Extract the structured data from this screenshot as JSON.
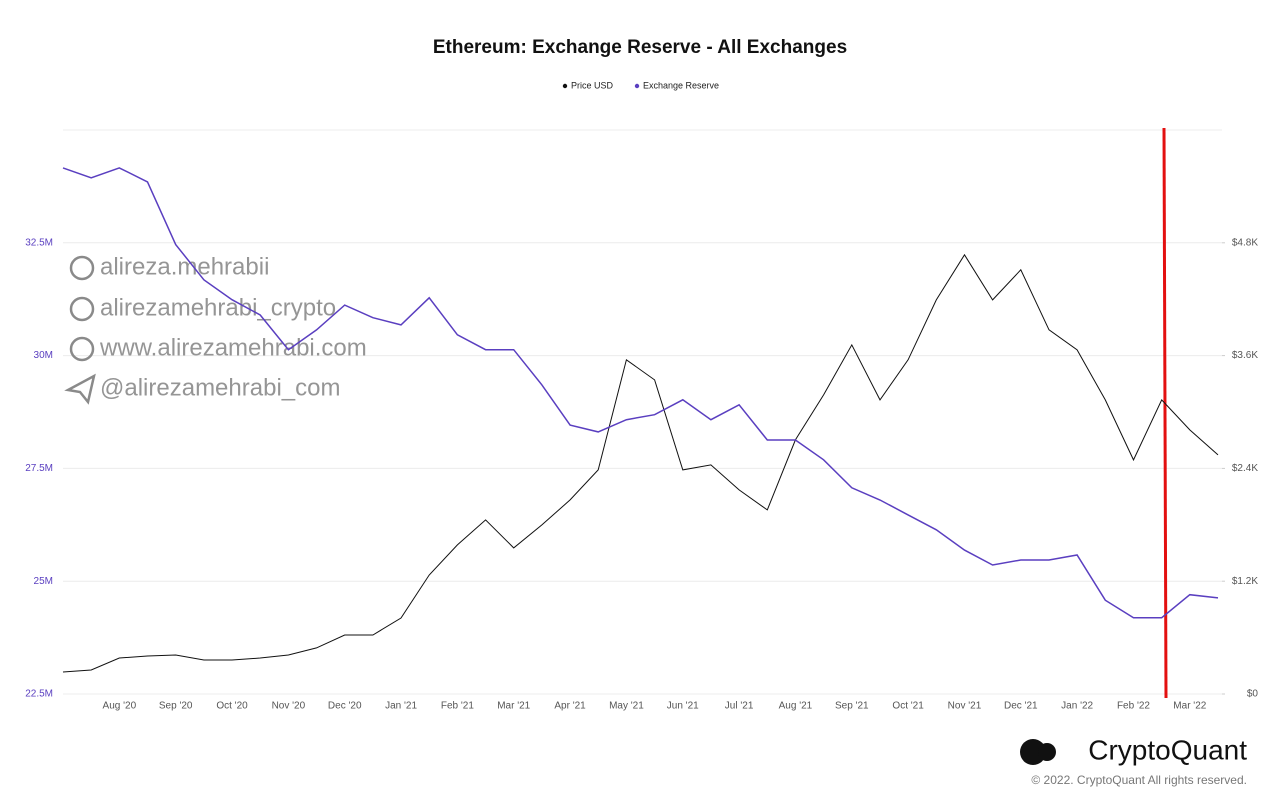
{
  "chart_data": {
    "type": "line",
    "title": "Ethereum: Exchange Reserve - All Exchanges",
    "categories": [
      null,
      null,
      "Aug '20",
      null,
      "Sep '20",
      null,
      "Oct '20",
      null,
      "Nov '20",
      null,
      "Dec '20",
      null,
      "Jan '21",
      null,
      "Feb '21",
      null,
      "Mar '21",
      null,
      "Apr '21",
      null,
      "May '21",
      null,
      "Jun '21",
      null,
      "Jul '21",
      null,
      "Aug '21",
      null,
      "Sep '21",
      null,
      "Oct '21",
      null,
      "Nov '21",
      null,
      "Dec '21",
      null,
      "Jan '22",
      null,
      "Feb '22",
      null,
      "Mar '22",
      null
    ],
    "series": [
      {
        "name": "Price USD",
        "color": "#111111",
        "axis": "y2",
        "values": [
          234,
          255,
          383,
          404,
          415,
          362,
          362,
          383,
          415,
          490,
          628,
          628,
          809,
          1266,
          1586,
          1852,
          1554,
          1799,
          2065,
          2384,
          3555,
          3342,
          2384,
          2437,
          2171,
          1958,
          2703,
          3182,
          3714,
          3129,
          3555,
          4193,
          4672,
          4193,
          4513,
          3874,
          3661,
          3129,
          2490,
          3129,
          2810,
          2544
        ]
      },
      {
        "name": "Exchange Reserve",
        "color": "#5a3fc0",
        "values": [
          34160000,
          33940000,
          34160000,
          33850000,
          32460000,
          31680000,
          31240000,
          30900000,
          30130000,
          30570000,
          31120000,
          30840000,
          30680000,
          31280000,
          30460000,
          30130000,
          30130000,
          29350000,
          28460000,
          28310000,
          28580000,
          28690000,
          29020000,
          28580000,
          28910000,
          28130000,
          28130000,
          27690000,
          27070000,
          26800000,
          26470000,
          26140000,
          25690000,
          25360000,
          25470000,
          25470000,
          25580000,
          24580000,
          24190000,
          24190000,
          24700000,
          24630000
        ]
      }
    ],
    "ylim": [
      22500000,
      35000000
    ],
    "yticks": [
      {
        "value": 22500000,
        "label": "22.5M"
      },
      {
        "value": 25000000,
        "label": "25M"
      },
      {
        "value": 27500000,
        "label": "27.5M"
      },
      {
        "value": 30000000,
        "label": "30M"
      },
      {
        "value": 32500000,
        "label": "32.5M"
      }
    ],
    "y2lim": [
      0,
      6000
    ],
    "y2ticks": [
      {
        "value": 0,
        "label": "$0"
      },
      {
        "value": 1200,
        "label": "$1.2K"
      },
      {
        "value": 2400,
        "label": "$2.4K"
      },
      {
        "value": 3600,
        "label": "$3.6K"
      },
      {
        "value": 4800,
        "label": "$4.8K"
      }
    ],
    "grid": true,
    "legend": "top"
  },
  "watermark": [
    "alireza.mehrabii",
    "alirezamehrabi_crypto",
    "www.alirezamehrabi.com",
    "@alirezamehrabi_com"
  ],
  "footer": {
    "logo": "CryptoQuant",
    "copyright": "© 2022. CryptoQuant All rights reserved."
  }
}
